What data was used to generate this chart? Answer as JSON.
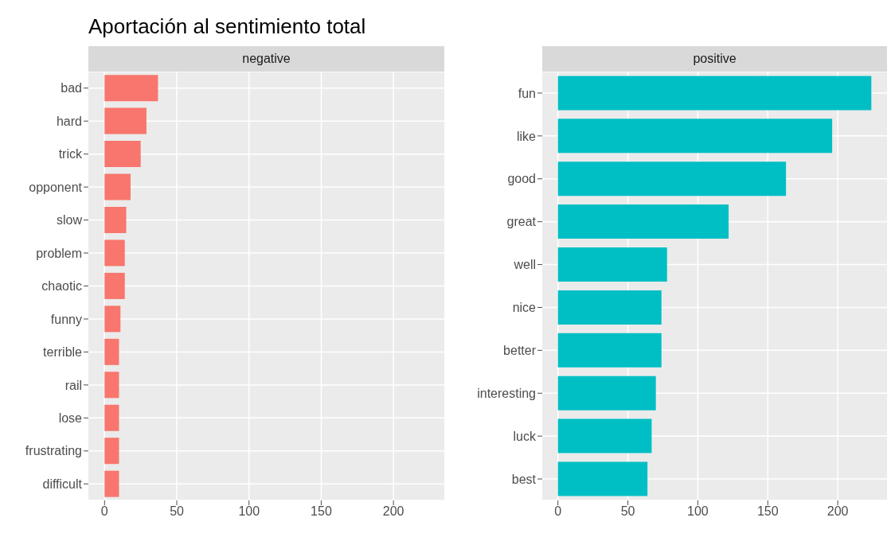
{
  "chart_data": [
    {
      "type": "bar",
      "orientation": "horizontal",
      "title": "Aportación al sentimiento total",
      "subtitle": "negative",
      "categories": [
        "bad",
        "hard",
        "trick",
        "opponent",
        "slow",
        "problem",
        "chaotic",
        "funny",
        "terrible",
        "rail",
        "lose",
        "frustrating",
        "difficult"
      ],
      "values": [
        37,
        29,
        25,
        18,
        15,
        14,
        14,
        11,
        10,
        10,
        10,
        10,
        10
      ],
      "color": "#f8766d",
      "xlim": [
        -11.2,
        235.2
      ],
      "xticks": [
        0,
        50,
        100,
        150,
        200
      ],
      "grid": true
    },
    {
      "type": "bar",
      "orientation": "horizontal",
      "subtitle": "positive",
      "categories": [
        "fun",
        "like",
        "good",
        "great",
        "well",
        "nice",
        "better",
        "interesting",
        "luck",
        "best"
      ],
      "values": [
        224,
        196,
        163,
        122,
        78,
        74,
        74,
        70,
        67,
        64
      ],
      "color": "#00bfc4",
      "xlim": [
        -11.2,
        235.2
      ],
      "xticks": [
        0,
        50,
        100,
        150,
        200
      ],
      "grid": true
    }
  ]
}
